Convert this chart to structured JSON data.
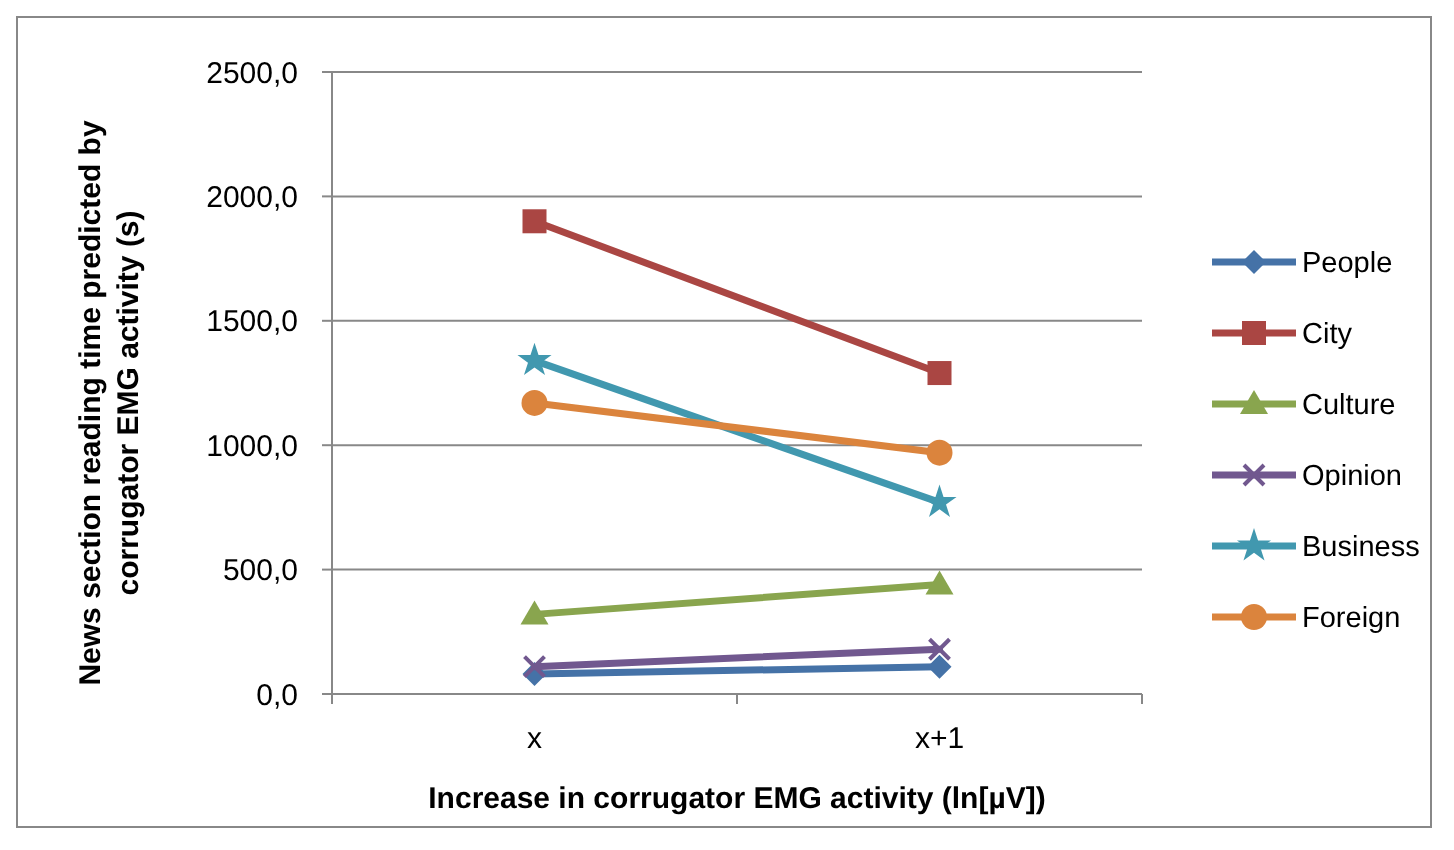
{
  "chart_data": {
    "type": "line",
    "xlabel": "Increase in corrugator  EMG activity (ln[µV])",
    "ylabel": "News section reading time predicted by corrugator  EMG activity (s)",
    "categories": [
      "x",
      "x+1"
    ],
    "ylim": [
      0,
      2500
    ],
    "yticks": [
      {
        "value": 0,
        "label": "0,0"
      },
      {
        "value": 500,
        "label": "500,0"
      },
      {
        "value": 1000,
        "label": "1000,0"
      },
      {
        "value": 1500,
        "label": "1500,0"
      },
      {
        "value": 2000,
        "label": "2000,0"
      },
      {
        "value": 2500,
        "label": "2500,0"
      }
    ],
    "grid": "y",
    "legend": "right",
    "line_style": "solid",
    "series": [
      {
        "name": "People",
        "color": "#4572a7",
        "marker": "diamond",
        "values": [
          80,
          110
        ]
      },
      {
        "name": "City",
        "color": "#aa4643",
        "marker": "square",
        "values": [
          1900,
          1290
        ]
      },
      {
        "name": "Culture",
        "color": "#89a54e",
        "marker": "triangle",
        "values": [
          320,
          440
        ]
      },
      {
        "name": "Opinion",
        "color": "#71588f",
        "marker": "cross",
        "values": [
          110,
          180
        ]
      },
      {
        "name": "Business",
        "color": "#4198af",
        "marker": "star",
        "values": [
          1340,
          770
        ]
      },
      {
        "name": "Foreign",
        "color": "#db843d",
        "marker": "circle",
        "values": [
          1170,
          970
        ]
      }
    ]
  }
}
